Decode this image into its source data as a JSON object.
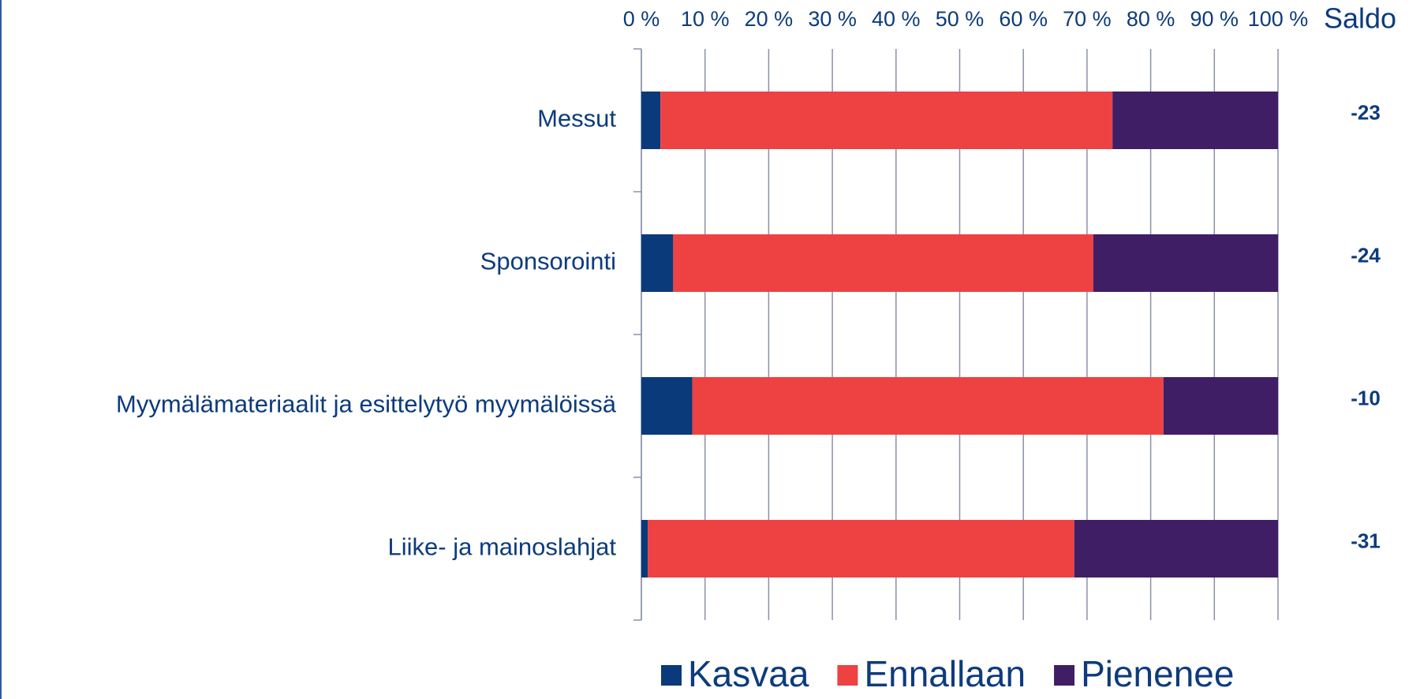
{
  "chart_data": {
    "type": "stacked_barh",
    "categories": [
      "Messut",
      "Sponsorointi",
      "Myymälämateriaalit ja esittelytyö myymälöissä",
      "Liike- ja mainoslahjat"
    ],
    "series": [
      {
        "name": "Kasvaa",
        "color": "#0a3a7a",
        "values": [
          3,
          5,
          8,
          1
        ]
      },
      {
        "name": "Ennallaan",
        "color": "#ee4242",
        "values": [
          71,
          66,
          74,
          67
        ]
      },
      {
        "name": "Pienenee",
        "color": "#401e66",
        "values": [
          26,
          29,
          18,
          32
        ]
      }
    ],
    "xlim": [
      0,
      100
    ],
    "xticks": [
      {
        "value": 0,
        "label": "0 %"
      },
      {
        "value": 10,
        "label": "10 %"
      },
      {
        "value": 20,
        "label": "20 %"
      },
      {
        "value": 30,
        "label": "30 %"
      },
      {
        "value": 40,
        "label": "40 %"
      },
      {
        "value": 50,
        "label": "50 %"
      },
      {
        "value": 60,
        "label": "60 %"
      },
      {
        "value": 70,
        "label": "70 %"
      },
      {
        "value": 80,
        "label": "80 %"
      },
      {
        "value": 90,
        "label": "90 %"
      },
      {
        "value": 100,
        "label": "100 %"
      }
    ],
    "grid": true,
    "legend": "bottom",
    "saldo": {
      "title": "Saldo",
      "values": [
        -23,
        -24,
        -10,
        -31
      ]
    }
  }
}
